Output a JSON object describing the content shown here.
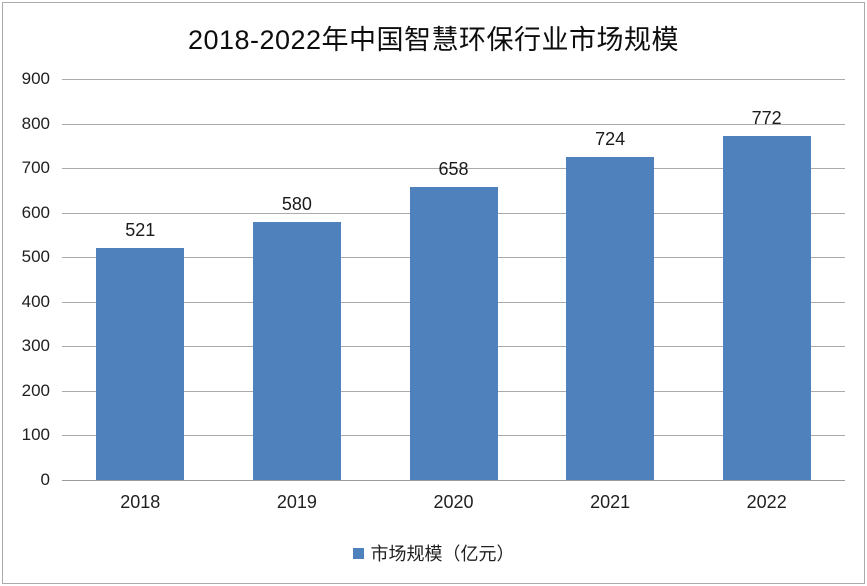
{
  "title": "2018-2022年中国智慧环保行业市场规模",
  "legend": {
    "label": "市场规模（亿元）",
    "marker_icon": "legend-square-icon",
    "marker_color": "#4f81bd"
  },
  "colors": {
    "bar": "#4f81bd",
    "gridline": "#ababab",
    "text": "#1f1f1f",
    "frame_border": "#ababab"
  },
  "chart_data": {
    "type": "bar",
    "title": "2018-2022年中国智慧环保行业市场规模",
    "categories": [
      "2018",
      "2019",
      "2020",
      "2021",
      "2022"
    ],
    "series": [
      {
        "name": "市场规模（亿元）",
        "values": [
          521,
          580,
          658,
          724,
          772
        ]
      }
    ],
    "value_labels_shown": true,
    "xlabel": "",
    "ylabel": "",
    "ylim": [
      0,
      900
    ],
    "ytick_step": 100,
    "ytick_labels": [
      "0",
      "100",
      "200",
      "300",
      "400",
      "500",
      "600",
      "700",
      "800",
      "900"
    ],
    "grid": true,
    "legend_position": "bottom"
  }
}
